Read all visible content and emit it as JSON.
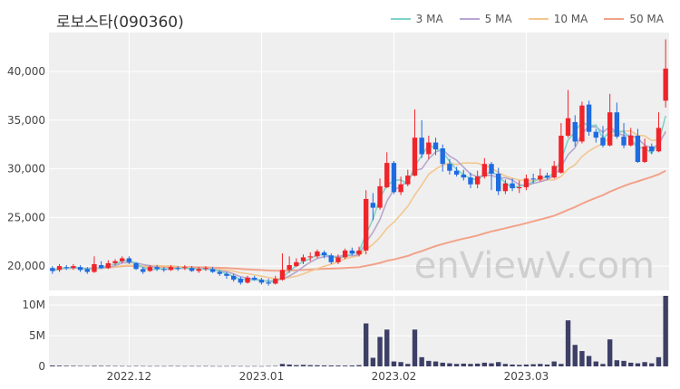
{
  "title": "로보스타(090360)",
  "watermark": "enViewV.com",
  "legend": [
    {
      "name": "3 MA",
      "color": "#7fd3c9"
    },
    {
      "name": "5 MA",
      "color": "#b7a6cf"
    },
    {
      "name": "10 MA",
      "color": "#f3c78f"
    },
    {
      "name": "50 MA",
      "color": "#f2a28a"
    }
  ],
  "colors": {
    "up": "#f0242b",
    "down": "#1f6be0",
    "volume": "#3d3f66",
    "plot_bg": "#efefef"
  },
  "chart_data": {
    "type": "candlestick",
    "price_axis": {
      "ticks": [
        20000,
        25000,
        30000,
        35000,
        40000
      ],
      "labels": [
        "20,000",
        "25,000",
        "30,000",
        "35,000",
        "40,000"
      ],
      "range": [
        17500,
        44000
      ]
    },
    "volume_axis": {
      "ticks": [
        0,
        5000000,
        10000000
      ],
      "labels": [
        "0",
        "5M",
        "10M"
      ],
      "range": [
        0,
        11500000
      ]
    },
    "x_labels": [
      {
        "index": 11,
        "label": "2022.12"
      },
      {
        "index": 30,
        "label": "2023.01"
      },
      {
        "index": 49,
        "label": "2023.02"
      },
      {
        "index": 68,
        "label": "2023.03"
      }
    ],
    "candles": [
      [
        19800,
        19500,
        20000,
        19200
      ],
      [
        19600,
        20000,
        20200,
        19400
      ],
      [
        19900,
        19800,
        20100,
        19600
      ],
      [
        19800,
        20000,
        20200,
        19600
      ],
      [
        19900,
        19600,
        20100,
        19400
      ],
      [
        19700,
        19400,
        19900,
        19200
      ],
      [
        19400,
        20200,
        21000,
        19300
      ],
      [
        20100,
        19800,
        20500,
        19700
      ],
      [
        19800,
        20300,
        20600,
        19700
      ],
      [
        20300,
        20500,
        20700,
        20100
      ],
      [
        20500,
        20800,
        21000,
        20300
      ],
      [
        20800,
        20400,
        21000,
        20200
      ],
      [
        20300,
        19700,
        20400,
        19600
      ],
      [
        19700,
        19400,
        19900,
        19200
      ],
      [
        19500,
        19900,
        20100,
        19400
      ],
      [
        19900,
        19700,
        20100,
        19500
      ],
      [
        19700,
        19600,
        19900,
        19400
      ],
      [
        19600,
        19900,
        20100,
        19500
      ],
      [
        19800,
        19700,
        20000,
        19500
      ],
      [
        19800,
        19900,
        20100,
        19600
      ],
      [
        19800,
        19500,
        20000,
        19400
      ],
      [
        19500,
        19700,
        19900,
        19300
      ],
      [
        19700,
        19800,
        20000,
        19500
      ],
      [
        19700,
        19400,
        19900,
        19300
      ],
      [
        19400,
        19200,
        19600,
        19000
      ],
      [
        19200,
        19000,
        19400,
        18700
      ],
      [
        19000,
        18600,
        19200,
        18400
      ],
      [
        18700,
        18300,
        18900,
        18100
      ],
      [
        18300,
        18800,
        19000,
        18200
      ],
      [
        18800,
        18600,
        19000,
        18500
      ],
      [
        18600,
        18300,
        18800,
        18100
      ],
      [
        18300,
        18200,
        18700,
        18000
      ],
      [
        18200,
        18700,
        19000,
        18100
      ],
      [
        18600,
        19600,
        21300,
        18500
      ],
      [
        19600,
        20100,
        21000,
        19300
      ],
      [
        20000,
        20400,
        20800,
        19900
      ],
      [
        20500,
        20900,
        21200,
        20200
      ],
      [
        20900,
        21000,
        21400,
        20500
      ],
      [
        21000,
        21500,
        21700,
        20800
      ],
      [
        21400,
        21100,
        21600,
        20800
      ],
      [
        21100,
        20400,
        21300,
        20200
      ],
      [
        20400,
        20900,
        21200,
        20200
      ],
      [
        20900,
        21600,
        21800,
        20700
      ],
      [
        21600,
        21300,
        21900,
        21100
      ],
      [
        21200,
        21600,
        22000,
        21000
      ],
      [
        21600,
        26900,
        27800,
        21200
      ],
      [
        26500,
        26000,
        27500,
        24700
      ],
      [
        26000,
        28200,
        29000,
        25800
      ],
      [
        28100,
        30600,
        31700,
        28000
      ],
      [
        30600,
        27600,
        30800,
        27400
      ],
      [
        27600,
        28400,
        29200,
        27300
      ],
      [
        28400,
        29300,
        29900,
        28200
      ],
      [
        29300,
        33200,
        36100,
        29200
      ],
      [
        33200,
        31500,
        35000,
        31100
      ],
      [
        31500,
        32700,
        33400,
        31000
      ],
      [
        32700,
        32000,
        33200,
        31400
      ],
      [
        32100,
        30500,
        32500,
        29700
      ],
      [
        30500,
        29800,
        31000,
        29400
      ],
      [
        29800,
        29400,
        30200,
        29200
      ],
      [
        29400,
        29100,
        29900,
        28800
      ],
      [
        29100,
        28400,
        29600,
        28000
      ],
      [
        28400,
        29200,
        29800,
        28000
      ],
      [
        29200,
        30500,
        31100,
        29000
      ],
      [
        30500,
        29500,
        30700,
        27800
      ],
      [
        29500,
        27700,
        30100,
        27300
      ],
      [
        27700,
        28500,
        28900,
        27400
      ],
      [
        28500,
        28000,
        29000,
        27700
      ],
      [
        28000,
        28100,
        28800,
        27500
      ],
      [
        28100,
        29000,
        29400,
        27800
      ],
      [
        29000,
        28900,
        29500,
        28500
      ],
      [
        28900,
        29300,
        30000,
        28700
      ],
      [
        29300,
        29100,
        29600,
        28900
      ],
      [
        29100,
        30300,
        30800,
        29000
      ],
      [
        29600,
        33400,
        34700,
        29500
      ],
      [
        33400,
        35200,
        38100,
        33200
      ],
      [
        34800,
        32800,
        35500,
        32300
      ],
      [
        32800,
        36500,
        36900,
        32600
      ],
      [
        36600,
        33800,
        37000,
        33400
      ],
      [
        33800,
        33200,
        34100,
        32700
      ],
      [
        33200,
        32400,
        34400,
        32200
      ],
      [
        32400,
        35800,
        37700,
        32300
      ],
      [
        35800,
        33300,
        36800,
        33100
      ],
      [
        33300,
        32400,
        34700,
        32100
      ],
      [
        32400,
        33400,
        34200,
        32300
      ],
      [
        33400,
        30700,
        34100,
        30600
      ],
      [
        30700,
        32300,
        33100,
        30600
      ],
      [
        32300,
        31800,
        32600,
        31500
      ],
      [
        31800,
        34200,
        35800,
        31700
      ],
      [
        37000,
        40300,
        43300,
        36300
      ]
    ],
    "volumes": [
      150000,
      120000,
      100000,
      90000,
      80000,
      70000,
      100000,
      90000,
      80000,
      70000,
      60000,
      50000,
      70000,
      60000,
      50000,
      60000,
      50000,
      70000,
      60000,
      50000,
      60000,
      50000,
      60000,
      50000,
      40000,
      50000,
      60000,
      50000,
      40000,
      50000,
      40000,
      60000,
      70000,
      400000,
      300000,
      200000,
      250000,
      200000,
      180000,
      160000,
      150000,
      140000,
      130000,
      150000,
      200000,
      7000000,
      1400000,
      4800000,
      6000000,
      800000,
      700000,
      400000,
      6000000,
      1500000,
      900000,
      800000,
      600000,
      500000,
      400000,
      450000,
      400000,
      450000,
      600000,
      500000,
      700000,
      400000,
      300000,
      250000,
      300000,
      350000,
      400000,
      300000,
      800000,
      400000,
      7500000,
      3500000,
      2500000,
      1700000,
      800000,
      400000,
      4400000,
      1000000,
      900000,
      600000,
      500000,
      700000,
      500000,
      1500000,
      11500000
    ]
  }
}
